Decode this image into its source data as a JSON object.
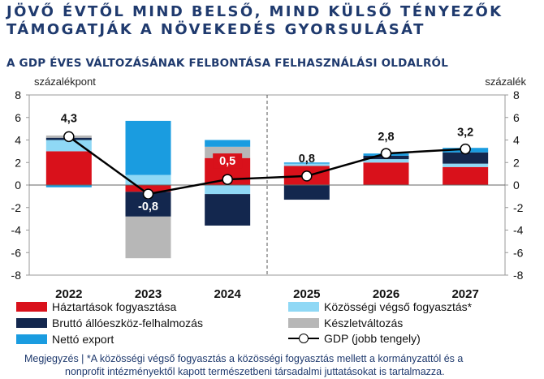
{
  "title_line1": "JÖVŐ ÉVTŐL MIND BELSŐ, MIND KÜLSŐ TÉNYEZŐK",
  "title_line2": "TÁMOGATJÁK A NÖVEKEDÉS GYORSULÁSÁT",
  "note_line1": "Megjegyzés | *A közösségi végső fogyasztás a közösségi fogyasztás mellett a kormányzattól és a",
  "note_line2": "nonprofit intézményektől kapott természetbeni társadalmi juttatásokat is tartalmazza.",
  "chart_data": {
    "type": "bar",
    "title": "A GDP ÉVES VÁLTOZÁSÁNAK FELBONTÁSA FELHASZNÁLÁSI OLDALRÓL",
    "ylabel_left": "százalékpont",
    "ylabel_right": "százalék",
    "ylim": [
      -8,
      8
    ],
    "yticks": [
      "8",
      "6",
      "4",
      "2",
      "0",
      "-2",
      "-4",
      "-6",
      "-8"
    ],
    "categories": [
      "2022",
      "2023",
      "2024",
      "2025",
      "2026",
      "2027"
    ],
    "forecast_divider_after": "2024",
    "series": [
      {
        "name": "Háztartások fogyasztása",
        "color": "#d9111b",
        "values": [
          3.0,
          -0.6,
          2.4,
          1.7,
          2.0,
          1.6
        ]
      },
      {
        "name": "Közösségi végső fogyasztás*",
        "color": "#8fd8f5",
        "values": [
          1.0,
          0.9,
          -0.8,
          0.2,
          0.3,
          0.3
        ]
      },
      {
        "name": "Bruttó állóeszköz-felhalmozás",
        "color": "#13274e",
        "values": [
          0.2,
          -2.2,
          -2.8,
          -1.3,
          0.3,
          1.0
        ]
      },
      {
        "name": "Készletváltozás",
        "color": "#b7b7b7",
        "values": [
          0.2,
          -3.7,
          1.0,
          0.0,
          0.0,
          0.0
        ]
      },
      {
        "name": "Nettó export",
        "color": "#1a9ce0",
        "values": [
          -0.2,
          4.8,
          0.6,
          0.1,
          0.2,
          0.4
        ]
      }
    ],
    "line": {
      "name": "GDP (jobb tengely)",
      "color": "#000000",
      "values": [
        4.3,
        -0.8,
        0.5,
        0.8,
        2.8,
        3.2
      ],
      "labels": [
        "4,3",
        "-0,8",
        "0,5",
        "0,8",
        "2,8",
        "3,2"
      ]
    },
    "legend_position": "bottom"
  }
}
